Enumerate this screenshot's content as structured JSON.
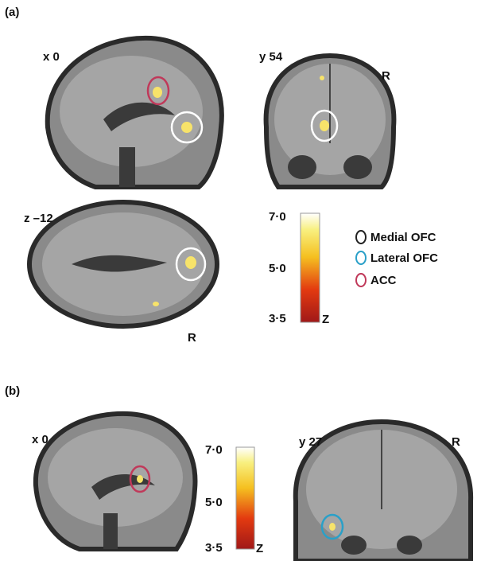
{
  "panels": [
    {
      "label": "(a)",
      "images": [
        {
          "coord": "x 0"
        },
        {
          "coord": "y 54",
          "side": "R"
        },
        {
          "coord": "z –12",
          "side": "R"
        }
      ],
      "colorbar": {
        "ticks": [
          "7·0",
          "5·0",
          "3·5"
        ],
        "unit": "Z"
      },
      "legend": [
        {
          "label": "Medial OFC"
        },
        {
          "label": "Lateral OFC"
        },
        {
          "label": "ACC"
        }
      ]
    },
    {
      "label": "(b)",
      "images": [
        {
          "coord": "x 0"
        },
        {
          "coord": "y 27",
          "side": "R"
        }
      ],
      "colorbar": {
        "ticks": [
          "7·0",
          "5·0",
          "3·5"
        ],
        "unit": "Z"
      }
    }
  ]
}
